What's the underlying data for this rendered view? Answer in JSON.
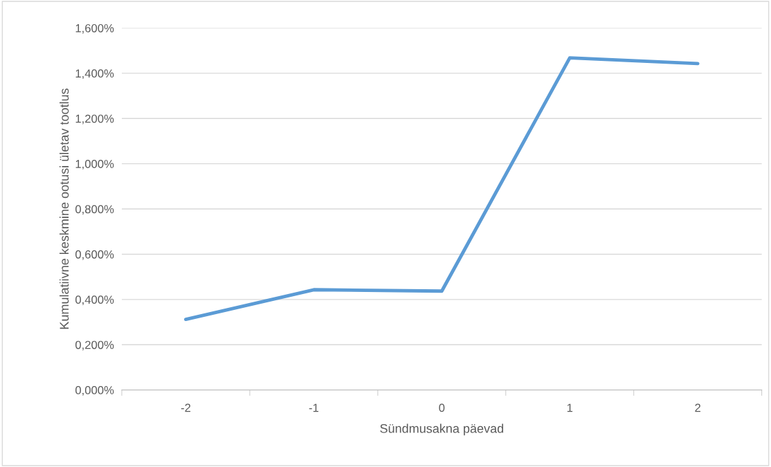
{
  "chart_data": {
    "type": "line",
    "xlabel": "Sündmusakna päevad",
    "ylabel": "Kumulatiivne keskmine ootusi ületav tootlus",
    "categories": [
      "-2",
      "-1",
      "0",
      "1",
      "2"
    ],
    "series": [
      {
        "color": "#5b9bd5",
        "values": [
          0.312,
          0.443,
          0.437,
          1.468,
          1.443
        ]
      }
    ],
    "ylim": [
      0,
      1.6
    ],
    "yticks": [
      {
        "value": 0,
        "label": "0,000%"
      },
      {
        "value": 0.2,
        "label": "0,200%"
      },
      {
        "value": 0.4,
        "label": "0,400%"
      },
      {
        "value": 0.6,
        "label": "0,600%"
      },
      {
        "value": 0.8,
        "label": "0,800%"
      },
      {
        "value": 1.0,
        "label": "1,000%"
      },
      {
        "value": 1.2,
        "label": "1,200%"
      },
      {
        "value": 1.4,
        "label": "1,400%"
      },
      {
        "value": 1.6,
        "label": "1,600%"
      }
    ],
    "grid": "y",
    "marker": "none",
    "line_style": "solid"
  }
}
